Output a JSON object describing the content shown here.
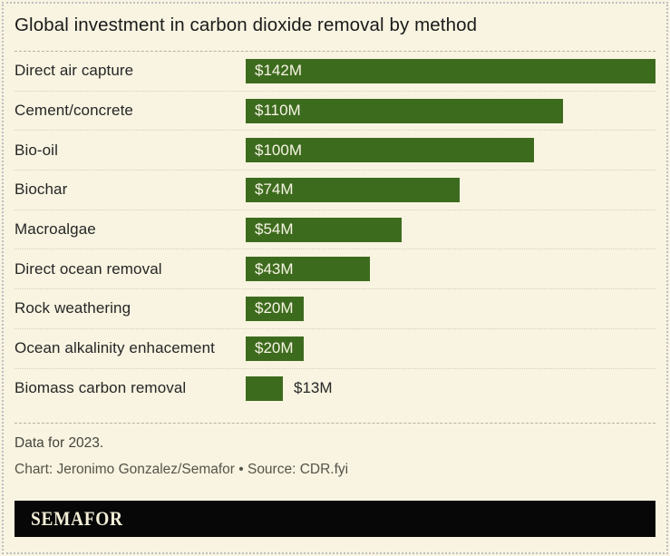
{
  "title": "Global investment in carbon dioxide removal by method",
  "chart_data": {
    "type": "bar",
    "orientation": "horizontal",
    "title": "Global investment in carbon dioxide removal by method",
    "categories": [
      "Direct air capture",
      "Cement/concrete",
      "Bio-oil",
      "Biochar",
      "Macroalgae",
      "Direct ocean removal",
      "Rock weathering",
      "Ocean alkalinity enhacement",
      "Biomass carbon removal"
    ],
    "values": [
      142,
      110,
      100,
      74,
      54,
      43,
      20,
      20,
      13
    ],
    "value_labels": [
      "$142M",
      "$110M",
      "$100M",
      "$74M",
      "$54M",
      "$43M",
      "$20M",
      "$20M",
      "$13M"
    ],
    "xlim": [
      0,
      142
    ],
    "grid": false,
    "legend": false,
    "value_label_position": "inside bar start; outside bar for smallest value"
  },
  "footer": {
    "note": "Data for 2023.",
    "credit": "Chart: Jeronimo Gonzalez/Semafor • Source: CDR.fyi"
  },
  "logo": {
    "text": "SEMAFOR"
  },
  "colors": {
    "background": "#f8f4e1",
    "bar": "#3d6b1e",
    "bar_value_text": "#f7f4e4",
    "title_text": "#1a1a1a",
    "category_text": "#262626",
    "note_text": "#45443c",
    "credit_text": "#55544a",
    "logo_background": "#070707",
    "logo_text": "#f2eed7"
  }
}
